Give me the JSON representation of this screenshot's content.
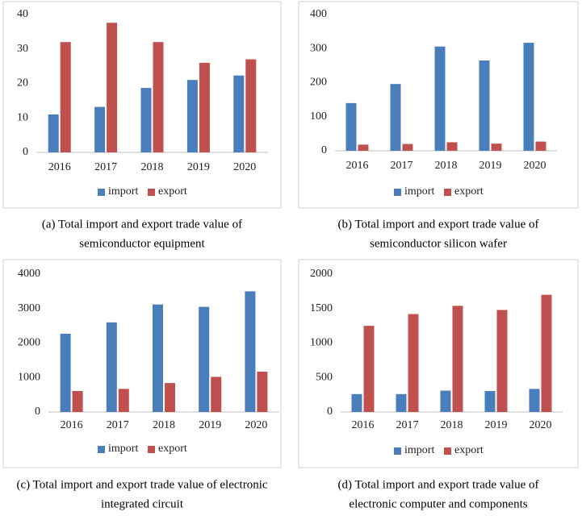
{
  "chart_data": [
    {
      "type": "bar",
      "caption": [
        "(a) Total import and export trade value of",
        "semiconductor equipment"
      ],
      "categories": [
        "2016",
        "2017",
        "2018",
        "2019",
        "2020"
      ],
      "series": [
        {
          "name": "import",
          "color": "#4a7ebb",
          "values": [
            11,
            13.2,
            18.7,
            21,
            22.3
          ]
        },
        {
          "name": "export",
          "color": "#c0504d",
          "values": [
            32,
            37.6,
            32,
            26,
            27
          ]
        }
      ],
      "ylim": [
        0,
        40
      ],
      "yticks": [
        0,
        10,
        20,
        30,
        40
      ],
      "legend": "bottom"
    },
    {
      "type": "bar",
      "caption": [
        "(b) Total import and export trade value of",
        "semiconductor silicon wafer"
      ],
      "categories": [
        "2016",
        "2017",
        "2018",
        "2019",
        "2020"
      ],
      "series": [
        {
          "name": "import",
          "color": "#4a7ebb",
          "values": [
            140,
            196,
            306,
            265,
            317
          ]
        },
        {
          "name": "export",
          "color": "#c0504d",
          "values": [
            18,
            20,
            25,
            21,
            27
          ]
        }
      ],
      "ylim": [
        0,
        400
      ],
      "yticks": [
        0,
        100,
        200,
        300,
        400
      ],
      "legend": "bottom"
    },
    {
      "type": "bar",
      "caption": [
        "(c) Total import and export trade value of electronic",
        "integrated circuit"
      ],
      "categories": [
        "2016",
        "2017",
        "2018",
        "2019",
        "2020"
      ],
      "series": [
        {
          "name": "import",
          "color": "#4a7ebb",
          "values": [
            2270,
            2600,
            3120,
            3050,
            3500
          ]
        },
        {
          "name": "export",
          "color": "#c0504d",
          "values": [
            610,
            670,
            840,
            1020,
            1170
          ]
        }
      ],
      "ylim": [
        0,
        4000
      ],
      "yticks": [
        0,
        1000,
        2000,
        3000,
        4000
      ],
      "legend": "bottom"
    },
    {
      "type": "bar",
      "caption": [
        "(d) Total import and export trade value of",
        "electronic computer and components"
      ],
      "categories": [
        "2016",
        "2017",
        "2018",
        "2019",
        "2020"
      ],
      "series": [
        {
          "name": "import",
          "color": "#4a7ebb",
          "values": [
            260,
            260,
            310,
            305,
            335
          ]
        },
        {
          "name": "export",
          "color": "#c0504d",
          "values": [
            1250,
            1420,
            1540,
            1480,
            1700
          ]
        }
      ],
      "ylim": [
        0,
        2000
      ],
      "yticks": [
        0,
        500,
        1000,
        1500,
        2000
      ],
      "legend": "bottom"
    }
  ]
}
